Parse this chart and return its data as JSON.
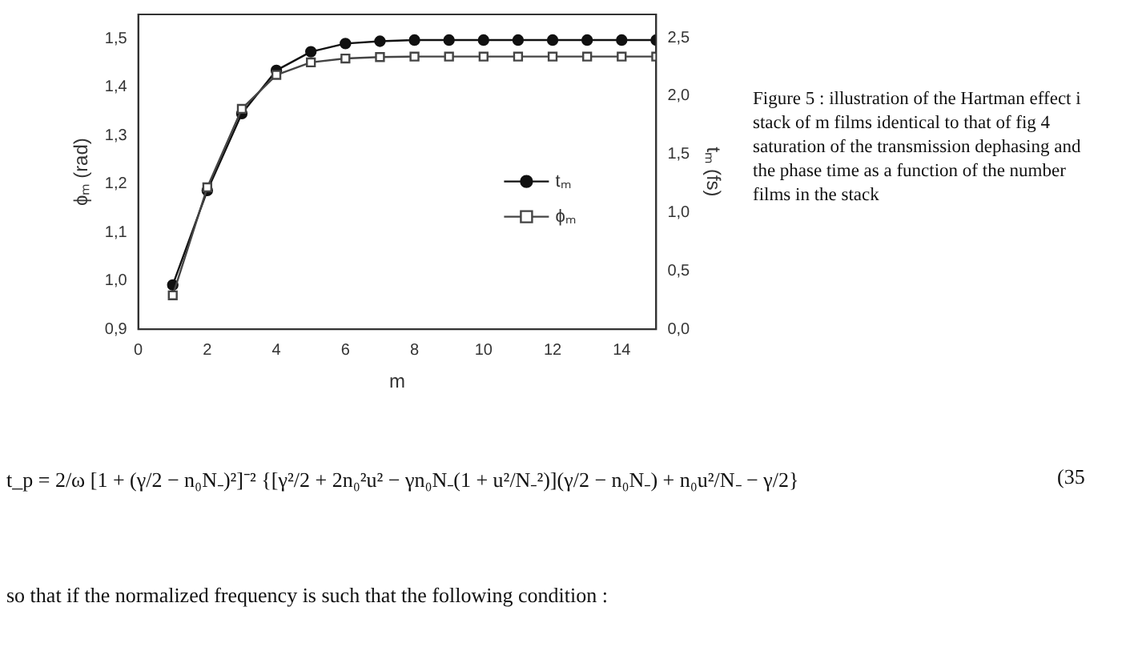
{
  "chart_data": {
    "type": "line",
    "xlabel": "m",
    "ylabel": "ϕₘ (rad)",
    "y2label": "tₘ (fs)",
    "x": [
      1,
      2,
      3,
      4,
      5,
      6,
      7,
      8,
      9,
      10,
      11,
      12,
      13,
      14,
      15
    ],
    "series": [
      {
        "name": "tₘ",
        "color": "#111111",
        "axis": "y2",
        "marker": "circle",
        "values": [
          0.38,
          1.19,
          1.85,
          2.22,
          2.38,
          2.45,
          2.47,
          2.48,
          2.48,
          2.48,
          2.48,
          2.48,
          2.48,
          2.48,
          2.48
        ]
      },
      {
        "name": "ϕₘ",
        "color": "#444444",
        "marker": "square",
        "values": [
          0.97,
          1.193,
          1.355,
          1.425,
          1.451,
          1.459,
          1.462,
          1.463,
          1.463,
          1.463,
          1.463,
          1.463,
          1.463,
          1.463,
          1.463
        ]
      }
    ],
    "xlim": [
      0,
      15
    ],
    "xticks": [
      0,
      2,
      4,
      6,
      8,
      10,
      12,
      14
    ],
    "ylim": [
      0.9,
      1.55
    ],
    "yticks": [
      {
        "value": 0.9,
        "label": "0,9"
      },
      {
        "value": 1.0,
        "label": "1,0"
      },
      {
        "value": 1.1,
        "label": "1,1"
      },
      {
        "value": 1.2,
        "label": "1,2"
      },
      {
        "value": 1.3,
        "label": "1,3"
      },
      {
        "value": 1.4,
        "label": "1,4"
      },
      {
        "value": 1.5,
        "label": "1,5"
      }
    ],
    "y2lim": [
      0,
      2.7
    ],
    "y2ticks": [
      {
        "value": 0,
        "label": "0,0"
      },
      {
        "value": 0.5,
        "label": "0,5"
      },
      {
        "value": 1,
        "label": "1,0"
      },
      {
        "value": 1.5,
        "label": "1,5"
      },
      {
        "value": 2,
        "label": "2,0"
      },
      {
        "value": 2.5,
        "label": "2,5"
      }
    ],
    "grid": false,
    "legend": "right",
    "line_style": "solid",
    "annotations": [
      "Figure 5 : illustration of the Hartman effect i",
      "stack of m films identical to that of fig 4",
      "saturation of the transmission dephasing and",
      "the phase time as a function of the number",
      "films in the stack",
      "t_p = 2/ω [1 + (γ/2 − n₀N₋)²]⁻² {[γ²/2 + 2n₀²u² − γn₀N₋(1 + u²/N₋²)](γ/2 − n₀N₋) + n₀u²/N₋ − γ/2}",
      "(35",
      "so that if the normalized frequency is such that the following condition :"
    ]
  }
}
